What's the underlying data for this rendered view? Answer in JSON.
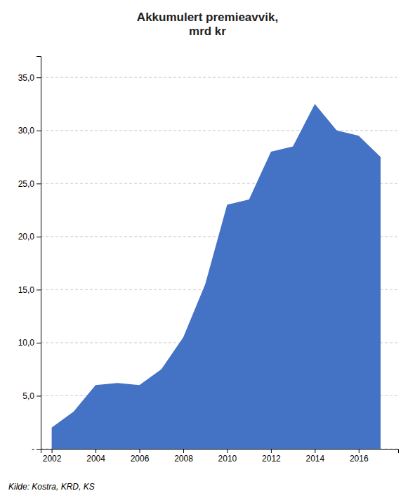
{
  "chart_data": {
    "type": "area",
    "title": "Akkumulert premieavvik,\nmrd kr",
    "x": [
      2002,
      2003,
      2004,
      2005,
      2006,
      2007,
      2008,
      2009,
      2010,
      2011,
      2012,
      2013,
      2014,
      2015,
      2016,
      2017
    ],
    "values": [
      2.0,
      3.5,
      6.0,
      6.2,
      6.0,
      7.5,
      10.5,
      15.5,
      23.0,
      23.5,
      28.0,
      28.5,
      32.5,
      30.0,
      29.5,
      27.5
    ],
    "color": "#4472C4",
    "xlim": [
      2001.5,
      2017.8
    ],
    "xticks": [
      2002,
      2004,
      2006,
      2008,
      2010,
      2012,
      2014,
      2016
    ],
    "ylim": [
      0,
      37
    ],
    "yticks": [
      {
        "value": 0,
        "label": "-"
      },
      {
        "value": 5.0,
        "label": "5,0"
      },
      {
        "value": 10.0,
        "label": "10,0"
      },
      {
        "value": 15.0,
        "label": "15,0"
      },
      {
        "value": 20.0,
        "label": "20,0"
      },
      {
        "value": 25.0,
        "label": "25,0"
      },
      {
        "value": 30.0,
        "label": "30,0"
      },
      {
        "value": 35.0,
        "label": "35,0"
      }
    ],
    "grid": "y",
    "source": "Kilde: Kostra, KRD, KS"
  }
}
